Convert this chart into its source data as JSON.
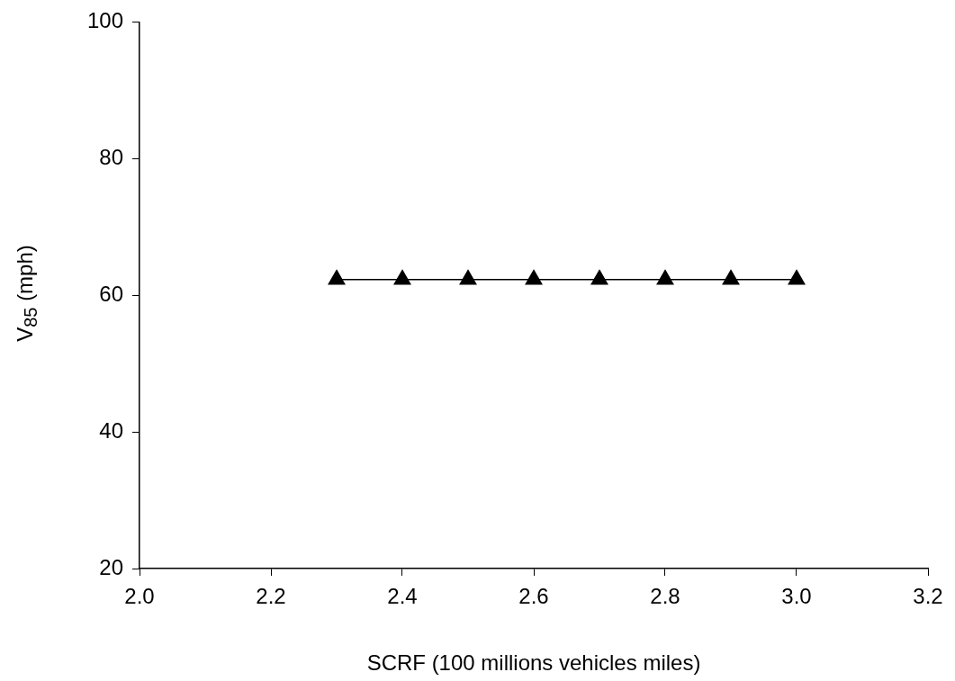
{
  "chart_data": {
    "type": "line",
    "xlabel": "SCRF (100 millions vehicles miles)",
    "ylabel": "V$_{85}$ (mph)",
    "x": [
      2.3,
      2.4,
      2.5,
      2.6,
      2.7,
      2.8,
      2.9,
      3.0
    ],
    "series": [
      {
        "color": "#000000",
        "values": [
          62.3,
          62.3,
          62.3,
          62.3,
          62.3,
          62.3,
          62.3,
          62.3
        ]
      }
    ],
    "xlim": [
      2.0,
      3.2
    ],
    "xticks": [
      {
        "value": 2.0,
        "label": "2.0"
      },
      {
        "value": 2.2,
        "label": "2.2"
      },
      {
        "value": 2.4,
        "label": "2.4"
      },
      {
        "value": 2.6,
        "label": "2.6"
      },
      {
        "value": 2.8,
        "label": "2.8"
      },
      {
        "value": 3.0,
        "label": "3.0"
      },
      {
        "value": 3.2,
        "label": "3.2"
      }
    ],
    "ylim": [
      20,
      100
    ],
    "yticks": [
      20,
      40,
      60,
      80,
      100
    ],
    "grid": false,
    "legend": false,
    "marker": "triangle",
    "line_style": "solid"
  }
}
